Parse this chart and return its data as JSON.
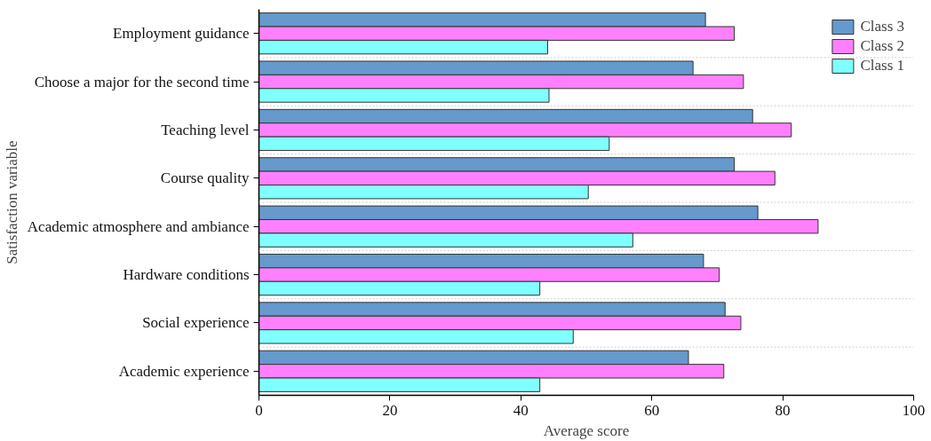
{
  "chart_data": {
    "type": "bar",
    "orientation": "horizontal",
    "xlabel": "Average score",
    "ylabel": "Satisfaction variable",
    "categories": [
      "Employment guidance",
      "Choose a major for the second time",
      "Teaching level",
      "Course quality",
      "Academic atmosphere and ambiance",
      "Hardware conditions",
      "Social experience",
      "Academic experience"
    ],
    "series": [
      {
        "name": "Class 3",
        "color": "#6699cc",
        "values": [
          68.2,
          66.3,
          75.4,
          72.6,
          76.2,
          67.9,
          71.2,
          65.6
        ]
      },
      {
        "name": "Class 2",
        "color": "#ff80ff",
        "values": [
          72.6,
          74.0,
          81.3,
          78.8,
          85.4,
          70.3,
          73.6,
          71.0
        ]
      },
      {
        "name": "Class 1",
        "color": "#80ffff",
        "values": [
          44.1,
          44.3,
          53.5,
          50.3,
          57.1,
          42.9,
          48.0,
          42.9
        ]
      }
    ],
    "xlim": [
      0,
      100
    ],
    "xticks": [
      0,
      20,
      40,
      60,
      80,
      100
    ],
    "grid": "y",
    "legend": "top right"
  }
}
